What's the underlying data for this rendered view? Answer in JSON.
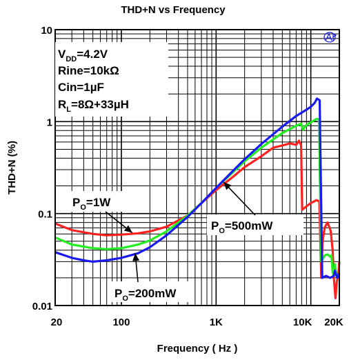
{
  "chart_data": {
    "type": "line",
    "title": "THD+N vs Frequency",
    "xlabel": "Frequency ( Hz )",
    "ylabel": "THD+N (%)",
    "x_scale": "log",
    "y_scale": "log",
    "xlim": [
      20,
      20000
    ],
    "ylim": [
      0.01,
      10
    ],
    "x_ticks": [
      {
        "value": 20,
        "label": "20"
      },
      {
        "value": 100,
        "label": "100"
      },
      {
        "value": 1000,
        "label": "1K"
      },
      {
        "value": 10000,
        "label": "10K"
      },
      {
        "value": 20000,
        "label": "20K"
      }
    ],
    "y_ticks": [
      {
        "value": 10,
        "label": "10"
      },
      {
        "value": 1,
        "label": "1"
      },
      {
        "value": 0.1,
        "label": "0.1"
      },
      {
        "value": 0.01,
        "label": "0.01"
      }
    ],
    "grid": true,
    "conditions": {
      "vdd": {
        "main": "V",
        "sub": "DD",
        "rest": "=4.2V"
      },
      "rine": "Rine=10kΩ",
      "cin": "Cin=1µF",
      "rl": {
        "main": "R",
        "sub": "L",
        "rest": "=8Ω+33µH"
      }
    },
    "series": [
      {
        "label": {
          "main": "P",
          "sub": "O",
          "rest": "=1W"
        },
        "color": "#ff2020",
        "points": [
          [
            20,
            0.078
          ],
          [
            30,
            0.066
          ],
          [
            50,
            0.06
          ],
          [
            70,
            0.058
          ],
          [
            100,
            0.059
          ],
          [
            150,
            0.061
          ],
          [
            200,
            0.064
          ],
          [
            300,
            0.072
          ],
          [
            500,
            0.095
          ],
          [
            700,
            0.13
          ],
          [
            1000,
            0.18
          ],
          [
            1500,
            0.25
          ],
          [
            2000,
            0.32
          ],
          [
            3000,
            0.42
          ],
          [
            4000,
            0.52
          ],
          [
            5000,
            0.55
          ],
          [
            6000,
            0.58
          ],
          [
            7000,
            0.56
          ],
          [
            7500,
            0.62
          ],
          [
            7900,
            0.55
          ],
          [
            8100,
            0.11
          ],
          [
            9000,
            0.12
          ],
          [
            10000,
            0.13
          ],
          [
            11500,
            0.14
          ],
          [
            12300,
            0.135
          ],
          [
            12900,
            0.02
          ],
          [
            13300,
            0.05
          ],
          [
            14000,
            0.07
          ],
          [
            15000,
            0.08
          ],
          [
            15800,
            0.07
          ],
          [
            16200,
            0.065
          ],
          [
            17000,
            0.04
          ],
          [
            17500,
            0.02
          ],
          [
            18200,
            0.012
          ],
          [
            18800,
            0.018
          ],
          [
            19500,
            0.022
          ],
          [
            20000,
            0.03
          ]
        ]
      },
      {
        "label": {
          "main": "P",
          "sub": "O",
          "rest": "=500mW"
        },
        "color": "#22ee22",
        "points": [
          [
            20,
            0.055
          ],
          [
            30,
            0.046
          ],
          [
            50,
            0.042
          ],
          [
            70,
            0.041
          ],
          [
            100,
            0.042
          ],
          [
            150,
            0.046
          ],
          [
            200,
            0.051
          ],
          [
            300,
            0.064
          ],
          [
            500,
            0.095
          ],
          [
            700,
            0.13
          ],
          [
            1000,
            0.19
          ],
          [
            1500,
            0.28
          ],
          [
            2000,
            0.37
          ],
          [
            3000,
            0.52
          ],
          [
            5000,
            0.75
          ],
          [
            7000,
            0.9
          ],
          [
            7900,
            0.95
          ],
          [
            8300,
            0.82
          ],
          [
            9000,
            0.92
          ],
          [
            10000,
            0.98
          ],
          [
            11500,
            1.07
          ],
          [
            12200,
            1.06
          ],
          [
            12900,
            0.03
          ],
          [
            14000,
            0.035
          ],
          [
            15000,
            0.036
          ],
          [
            16000,
            0.034
          ],
          [
            16500,
            0.035
          ],
          [
            17000,
            0.023
          ],
          [
            17500,
            0.021
          ],
          [
            18000,
            0.028
          ],
          [
            18500,
            0.022
          ],
          [
            19000,
            0.02
          ],
          [
            20000,
            0.022
          ]
        ]
      },
      {
        "label": {
          "main": "P",
          "sub": "O",
          "rest": "=200mW"
        },
        "color": "#1a1aee",
        "points": [
          [
            20,
            0.038
          ],
          [
            30,
            0.033
          ],
          [
            40,
            0.031
          ],
          [
            50,
            0.03
          ],
          [
            70,
            0.031
          ],
          [
            100,
            0.033
          ],
          [
            150,
            0.037
          ],
          [
            200,
            0.043
          ],
          [
            300,
            0.058
          ],
          [
            500,
            0.092
          ],
          [
            700,
            0.13
          ],
          [
            1000,
            0.19
          ],
          [
            1500,
            0.29
          ],
          [
            2000,
            0.39
          ],
          [
            3000,
            0.57
          ],
          [
            5000,
            0.88
          ],
          [
            7000,
            1.15
          ],
          [
            9000,
            1.35
          ],
          [
            10000,
            1.45
          ],
          [
            11000,
            1.6
          ],
          [
            11600,
            1.78
          ],
          [
            12400,
            1.7
          ],
          [
            13200,
            0.02
          ],
          [
            14500,
            0.021
          ],
          [
            16000,
            0.02
          ],
          [
            17500,
            0.021
          ],
          [
            18000,
            0.024
          ],
          [
            19000,
            0.02
          ],
          [
            20000,
            0.022
          ]
        ]
      }
    ],
    "annotations": [
      {
        "label": {
          "main": "P",
          "sub": "O",
          "rest": "=1W"
        },
        "target_x": 130,
        "target_y": 0.062
      },
      {
        "label": {
          "main": "P",
          "sub": "O",
          "rest": "=500mW"
        },
        "target_x": 1200,
        "target_y": 0.22
      },
      {
        "label": {
          "main": "P",
          "sub": "O",
          "rest": "=200mW"
        },
        "target_x": 140,
        "target_y": 0.037
      }
    ],
    "logo": "AP-logo"
  }
}
